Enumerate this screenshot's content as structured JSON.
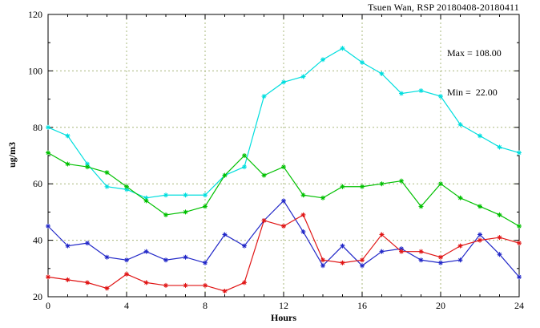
{
  "chart_data": {
    "type": "line",
    "title": "Tsuen Wan, RSP 20180408-20180411",
    "xlabel": "Hours",
    "ylabel": "ug/m3",
    "xlim": [
      0,
      24
    ],
    "ylim": [
      20,
      120
    ],
    "xticks": [
      0,
      4,
      8,
      12,
      16,
      20,
      24
    ],
    "yticks": [
      20,
      40,
      60,
      80,
      100,
      120
    ],
    "x_minor_step": 1,
    "y_minor_step": 10,
    "grid": true,
    "grid_color": "#aab87e",
    "frame_color": "#000000",
    "legend_position": "none",
    "marker": "asterisk",
    "x": [
      0,
      1,
      2,
      3,
      4,
      5,
      6,
      7,
      8,
      9,
      10,
      11,
      12,
      13,
      14,
      15,
      16,
      17,
      18,
      19,
      20,
      21,
      22,
      23,
      24
    ],
    "series": [
      {
        "name": "series-cyan",
        "color": "#00dede",
        "values": [
          80,
          77,
          67,
          59,
          58,
          55,
          56,
          56,
          56,
          63,
          66,
          91,
          96,
          98,
          104,
          108,
          103,
          99,
          92,
          93,
          91,
          81,
          77,
          73,
          71
        ]
      },
      {
        "name": "series-green",
        "color": "#00c000",
        "values": [
          71,
          67,
          66,
          64,
          59,
          54,
          49,
          50,
          52,
          63,
          70,
          63,
          66,
          56,
          55,
          59,
          59,
          60,
          61,
          52,
          60,
          55,
          52,
          49,
          45
        ]
      },
      {
        "name": "series-blue",
        "color": "#2228c8",
        "values": [
          45,
          38,
          39,
          34,
          33,
          36,
          33,
          34,
          32,
          42,
          38,
          47,
          54,
          43,
          31,
          38,
          31,
          36,
          37,
          33,
          32,
          33,
          42,
          35,
          27
        ]
      },
      {
        "name": "series-red",
        "color": "#e01515",
        "values": [
          27,
          26,
          25,
          23,
          28,
          25,
          24,
          24,
          24,
          22,
          25,
          47,
          45,
          49,
          33,
          32,
          33,
          42,
          36,
          36,
          34,
          38,
          40,
          41,
          39
        ]
      }
    ],
    "annotations": {
      "max_label": "Max = 108.00",
      "min_label": "Min =  22.00"
    },
    "stats": {
      "max": 108.0,
      "min": 22.0
    }
  }
}
